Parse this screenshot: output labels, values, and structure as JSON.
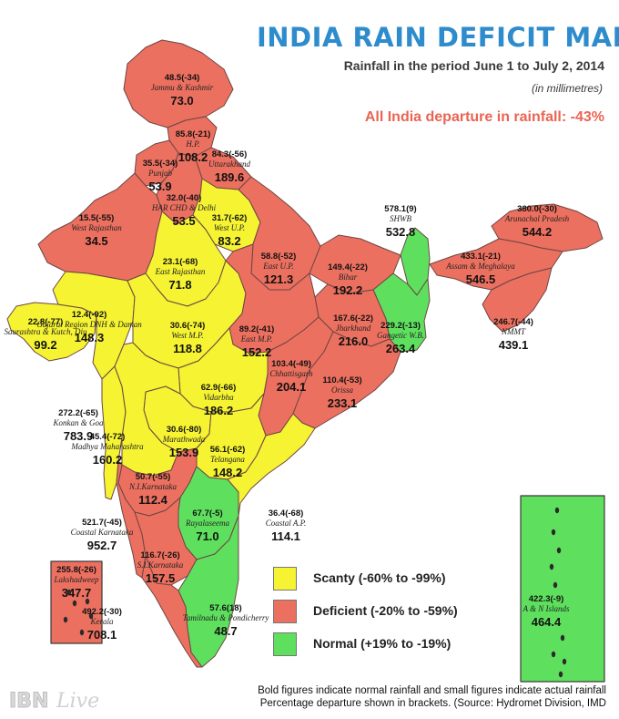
{
  "title": "INDIA RAIN DEFICIT MAP",
  "subtitle": "Rainfall in the period June 1 to July 2, 2014",
  "units": "(in millimetres)",
  "all_india": "All India departure in rainfall: -43%",
  "colors": {
    "scanty": "#f5f332",
    "deficient": "#ec7060",
    "normal": "#5ee05e",
    "title": "#2e8ccd",
    "accent": "#ea6452"
  },
  "legend": [
    {
      "category": "scanty",
      "label": "Scanty (-60% to -99%)"
    },
    {
      "category": "deficient",
      "label": "Deficient (-20% to -59%)"
    },
    {
      "category": "normal",
      "label": "Normal (+19% to -19%)"
    }
  ],
  "subdivisions": [
    {
      "name": "Jammu & Kashmir",
      "actual": "48.5(-34)",
      "normal": "73.0",
      "category": "deficient"
    },
    {
      "name": "H.P.",
      "actual": "85.8(-21)",
      "normal": "108.2",
      "category": "deficient"
    },
    {
      "name": "Punjab",
      "actual": "35.5(-34)",
      "normal": "53.9",
      "category": "deficient"
    },
    {
      "name": "Uttarakhand",
      "actual": "84.3(-56)",
      "normal": "189.6",
      "category": "deficient"
    },
    {
      "name": "HAR CHD & Delhi",
      "actual": "32.0(-40)",
      "normal": "53.5",
      "category": "deficient"
    },
    {
      "name": "West U.P.",
      "actual": "31.7(-62)",
      "normal": "83.2",
      "category": "scanty"
    },
    {
      "name": "West Rajasthan",
      "actual": "15.5(-55)",
      "normal": "34.5",
      "category": "deficient"
    },
    {
      "name": "East Rajasthan",
      "actual": "23.1(-68)",
      "normal": "71.8",
      "category": "scanty"
    },
    {
      "name": "East U.P.",
      "actual": "58.8(-52)",
      "normal": "121.3",
      "category": "deficient"
    },
    {
      "name": "Bihar",
      "actual": "149.4(-22)",
      "normal": "192.2",
      "category": "deficient"
    },
    {
      "name": "SHWB",
      "actual": "578.1(9)",
      "normal": "532.8",
      "category": "normal"
    },
    {
      "name": "Arunachal Pradesh",
      "actual": "380.0(-30)",
      "normal": "544.2",
      "category": "deficient"
    },
    {
      "name": "Assam & Meghalaya",
      "actual": "433.1(-21)",
      "normal": "546.5",
      "category": "deficient"
    },
    {
      "name": "NMMT",
      "actual": "246.7(-44)",
      "normal": "439.1",
      "category": "deficient"
    },
    {
      "name": "Gangetic W.B.",
      "actual": "229.2(-13)",
      "normal": "263.4",
      "category": "normal"
    },
    {
      "name": "Jharkhand",
      "actual": "167.6(-22)",
      "normal": "216.0",
      "category": "deficient"
    },
    {
      "name": "Saurashtra & Kutch, Diu",
      "actual": "22.8(-77)",
      "normal": "99.2",
      "category": "scanty"
    },
    {
      "name": "Gujarat Region DNH & Daman",
      "actual": "12.4(-92)",
      "normal": "148.3",
      "category": "scanty"
    },
    {
      "name": "West M.P.",
      "actual": "30.6(-74)",
      "normal": "118.8",
      "category": "scanty"
    },
    {
      "name": "East M.P.",
      "actual": "89.2(-41)",
      "normal": "152.2",
      "category": "deficient"
    },
    {
      "name": "Chhattisgarh",
      "actual": "103.4(-49)",
      "normal": "204.1",
      "category": "deficient"
    },
    {
      "name": "Orissa",
      "actual": "110.4(-53)",
      "normal": "233.1",
      "category": "deficient"
    },
    {
      "name": "Vidarbha",
      "actual": "62.9(-66)",
      "normal": "186.2",
      "category": "scanty"
    },
    {
      "name": "Marathwada",
      "actual": "30.6(-80)",
      "normal": "153.9",
      "category": "scanty"
    },
    {
      "name": "Konkan & Goa",
      "actual": "272.2(-65)",
      "normal": "783.9",
      "category": "scanty"
    },
    {
      "name": "Madhya Maharashtra",
      "actual": "45.4(-72)",
      "normal": "160.2",
      "category": "scanty"
    },
    {
      "name": "Telangana",
      "actual": "56.1(-62)",
      "normal": "148.2",
      "category": "scanty"
    },
    {
      "name": "N.I.Karnataka",
      "actual": "50.7(-55)",
      "normal": "112.4",
      "category": "deficient"
    },
    {
      "name": "Rayalaseema",
      "actual": "67.7(-5)",
      "normal": "71.0",
      "category": "normal"
    },
    {
      "name": "Coastal A.P.",
      "actual": "36.4(-68)",
      "normal": "114.1",
      "category": "scanty"
    },
    {
      "name": "Coastal Karnataka",
      "actual": "521.7(-45)",
      "normal": "952.7",
      "category": "deficient"
    },
    {
      "name": "S.I.Karnataka",
      "actual": "116.7(-26)",
      "normal": "157.5",
      "category": "deficient"
    },
    {
      "name": "Tamilnadu & Pondicherry",
      "actual": "57.6(18)",
      "normal": "48.7",
      "category": "normal"
    },
    {
      "name": "Kerala",
      "actual": "492.2(-30)",
      "normal": "708.1",
      "category": "deficient"
    },
    {
      "name": "Lakshadweep",
      "actual": "255.8(-26)",
      "normal": "347.7",
      "category": "deficient"
    },
    {
      "name": "A & N Islands",
      "actual": "422.3(-9)",
      "normal": "464.4",
      "category": "normal"
    }
  ],
  "footnote_line1": "Bold figures indicate normal rainfall and small figures indicate actual rainfall",
  "footnote_line2": "Percentage departure shown in brackets. (Source: Hydromet Division, IMD",
  "logo": {
    "brand": "IBN",
    "suffix": "Live"
  }
}
